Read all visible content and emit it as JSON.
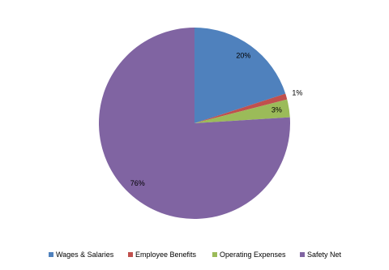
{
  "chart_data": {
    "type": "pie",
    "categories": [
      "Wages & Salaries",
      "Employee Benefits",
      "Operating Expenses",
      "Safety Net"
    ],
    "values": [
      20,
      1,
      3,
      76
    ],
    "value_labels": [
      "20%",
      "1%",
      "3%",
      "76%"
    ],
    "colors": [
      "#4f81bd",
      "#c0504d",
      "#9bbb59",
      "#8064a2"
    ],
    "legend": "bottom"
  }
}
